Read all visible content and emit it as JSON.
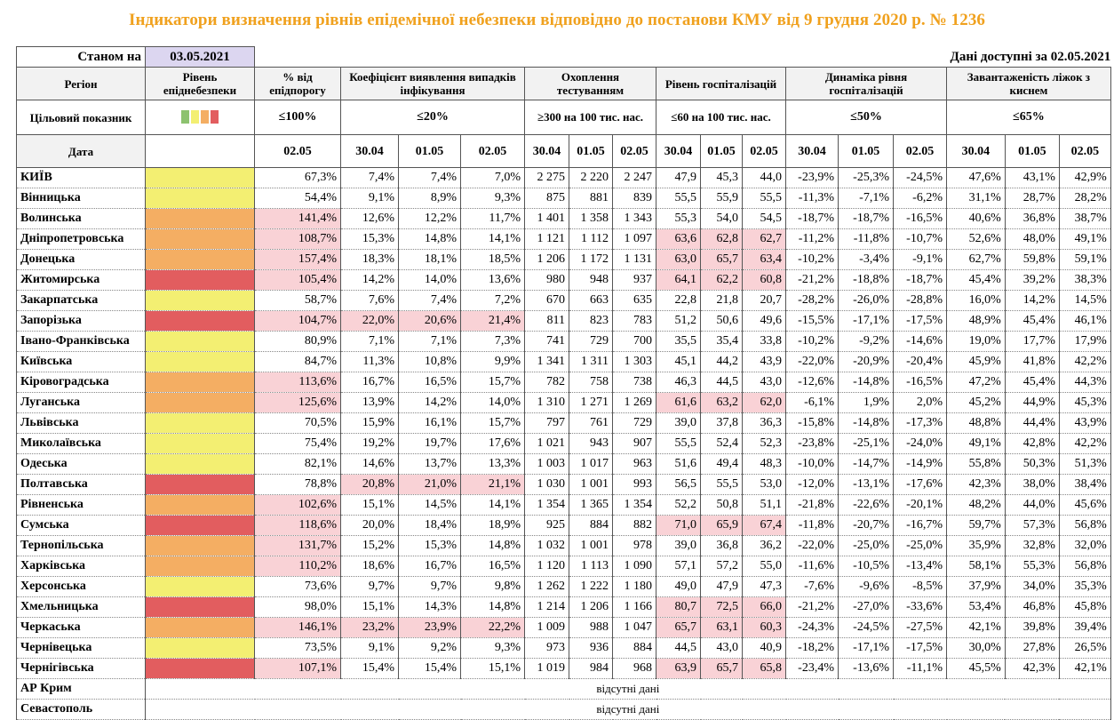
{
  "title": "Індикатори визначення рівнів епідемічної небезпеки відповідно до постанови КМУ від 9 грудня 2020 р. № 1236",
  "as_of_label": "Станом на",
  "as_of_date": "03.05.2021",
  "data_available_label": "Дані доступні за",
  "data_available_date": "02.05.2021",
  "headers": {
    "region": "Регіон",
    "level": "Рівень епіднебезпеки",
    "pct_threshold": "% від епідпорогу",
    "detection": "Коефіцієнт виявлення випадків інфікування",
    "testing": "Охоплення тестуванням",
    "hospitalization": "Рівень госпіталізацій",
    "hosp_dynamics": "Динаміка рівня госпіталізацій",
    "oxygen_beds": "Завантаженість ліжок з киснем"
  },
  "target": {
    "label": "Цільовий показник",
    "pct_threshold": "≤100%",
    "detection": "≤20%",
    "testing": "≥300 на 100 тис. нас.",
    "hospitalization": "≤60 на 100 тис. нас.",
    "hosp_dynamics": "≤50%",
    "oxygen_beds": "≤65%"
  },
  "legend_colors": [
    "#8dc26f",
    "#f3ef72",
    "#f4ae63",
    "#e25d5f"
  ],
  "date_row": {
    "label": "Дата",
    "pct": "02.05",
    "d1": "30.04",
    "d2": "01.05",
    "d3": "02.05"
  },
  "colors": {
    "yellow": "#f3ef72",
    "orange": "#f4ae63",
    "red": "#e25d5f",
    "highlight": "#f9d2d6",
    "title": "#f0a11e"
  },
  "rows": [
    {
      "region": "КИЇВ",
      "level": "yellow",
      "pct": "67,3%",
      "det": [
        "7,4%",
        "7,4%",
        "7,0%"
      ],
      "test": [
        "2 275",
        "2 220",
        "2 247"
      ],
      "hosp": [
        "47,9",
        "45,3",
        "44,0"
      ],
      "dyn": [
        "-23,9%",
        "-25,3%",
        "-24,5%"
      ],
      "oxy": [
        "47,6%",
        "43,1%",
        "42,9%"
      ],
      "hl": []
    },
    {
      "region": "Вінницька",
      "level": "yellow",
      "pct": "54,4%",
      "det": [
        "9,1%",
        "8,9%",
        "9,3%"
      ],
      "test": [
        "875",
        "881",
        "839"
      ],
      "hosp": [
        "55,5",
        "55,9",
        "55,5"
      ],
      "dyn": [
        "-11,3%",
        "-7,1%",
        "-6,2%"
      ],
      "oxy": [
        "31,1%",
        "28,7%",
        "28,2%"
      ],
      "hl": []
    },
    {
      "region": "Волинська",
      "level": "orange",
      "pct": "141,4%",
      "det": [
        "12,6%",
        "12,2%",
        "11,7%"
      ],
      "test": [
        "1 401",
        "1 358",
        "1 343"
      ],
      "hosp": [
        "55,3",
        "54,0",
        "54,5"
      ],
      "dyn": [
        "-18,7%",
        "-18,7%",
        "-16,5%"
      ],
      "oxy": [
        "40,6%",
        "36,8%",
        "38,7%"
      ],
      "hl": [
        "pct"
      ]
    },
    {
      "region": "Дніпропетровська",
      "level": "orange",
      "pct": "108,7%",
      "det": [
        "15,3%",
        "14,8%",
        "14,1%"
      ],
      "test": [
        "1 121",
        "1 112",
        "1 097"
      ],
      "hosp": [
        "63,6",
        "62,8",
        "62,7"
      ],
      "dyn": [
        "-11,2%",
        "-11,8%",
        "-10,7%"
      ],
      "oxy": [
        "52,6%",
        "48,0%",
        "49,1%"
      ],
      "hl": [
        "pct",
        "hosp"
      ]
    },
    {
      "region": "Донецька",
      "level": "orange",
      "pct": "157,4%",
      "det": [
        "18,3%",
        "18,1%",
        "18,5%"
      ],
      "test": [
        "1 206",
        "1 172",
        "1 131"
      ],
      "hosp": [
        "63,0",
        "65,7",
        "63,4"
      ],
      "dyn": [
        "-10,2%",
        "-3,4%",
        "-9,1%"
      ],
      "oxy": [
        "62,7%",
        "59,8%",
        "59,1%"
      ],
      "hl": [
        "pct",
        "hosp"
      ]
    },
    {
      "region": "Житомирська",
      "level": "red",
      "pct": "105,4%",
      "det": [
        "14,2%",
        "14,0%",
        "13,6%"
      ],
      "test": [
        "980",
        "948",
        "937"
      ],
      "hosp": [
        "64,1",
        "62,2",
        "60,8"
      ],
      "dyn": [
        "-21,2%",
        "-18,8%",
        "-18,7%"
      ],
      "oxy": [
        "45,4%",
        "39,2%",
        "38,3%"
      ],
      "hl": [
        "pct",
        "hosp"
      ]
    },
    {
      "region": "Закарпатська",
      "level": "yellow",
      "pct": "58,7%",
      "det": [
        "7,6%",
        "7,4%",
        "7,2%"
      ],
      "test": [
        "670",
        "663",
        "635"
      ],
      "hosp": [
        "22,8",
        "21,8",
        "20,7"
      ],
      "dyn": [
        "-28,2%",
        "-26,0%",
        "-28,8%"
      ],
      "oxy": [
        "16,0%",
        "14,2%",
        "14,5%"
      ],
      "hl": []
    },
    {
      "region": "Запорізька",
      "level": "red",
      "pct": "104,7%",
      "det": [
        "22,0%",
        "20,6%",
        "21,4%"
      ],
      "test": [
        "811",
        "823",
        "783"
      ],
      "hosp": [
        "51,2",
        "50,6",
        "49,6"
      ],
      "dyn": [
        "-15,5%",
        "-17,1%",
        "-17,5%"
      ],
      "oxy": [
        "48,9%",
        "45,4%",
        "46,1%"
      ],
      "hl": [
        "pct",
        "det"
      ]
    },
    {
      "region": "Івано-Франківська",
      "level": "yellow",
      "pct": "80,9%",
      "det": [
        "7,1%",
        "7,1%",
        "7,3%"
      ],
      "test": [
        "741",
        "729",
        "700"
      ],
      "hosp": [
        "35,5",
        "35,4",
        "33,8"
      ],
      "dyn": [
        "-10,2%",
        "-9,2%",
        "-14,6%"
      ],
      "oxy": [
        "19,0%",
        "17,7%",
        "17,9%"
      ],
      "hl": []
    },
    {
      "region": "Київська",
      "level": "yellow",
      "pct": "84,7%",
      "det": [
        "11,3%",
        "10,8%",
        "9,9%"
      ],
      "test": [
        "1 341",
        "1 311",
        "1 303"
      ],
      "hosp": [
        "45,1",
        "44,2",
        "43,9"
      ],
      "dyn": [
        "-22,0%",
        "-20,9%",
        "-20,4%"
      ],
      "oxy": [
        "45,9%",
        "41,8%",
        "42,2%"
      ],
      "hl": []
    },
    {
      "region": "Кіровоградська",
      "level": "orange",
      "pct": "113,6%",
      "det": [
        "16,7%",
        "16,5%",
        "15,7%"
      ],
      "test": [
        "782",
        "758",
        "738"
      ],
      "hosp": [
        "46,3",
        "44,5",
        "43,0"
      ],
      "dyn": [
        "-12,6%",
        "-14,8%",
        "-16,5%"
      ],
      "oxy": [
        "47,2%",
        "45,4%",
        "44,3%"
      ],
      "hl": [
        "pct"
      ]
    },
    {
      "region": "Луганська",
      "level": "orange",
      "pct": "125,6%",
      "det": [
        "13,9%",
        "14,2%",
        "14,0%"
      ],
      "test": [
        "1 310",
        "1 271",
        "1 269"
      ],
      "hosp": [
        "61,6",
        "63,2",
        "62,0"
      ],
      "dyn": [
        "-6,1%",
        "1,9%",
        "2,0%"
      ],
      "oxy": [
        "45,2%",
        "44,9%",
        "45,3%"
      ],
      "hl": [
        "pct",
        "hosp"
      ]
    },
    {
      "region": "Львівська",
      "level": "yellow",
      "pct": "70,5%",
      "det": [
        "15,9%",
        "16,1%",
        "15,7%"
      ],
      "test": [
        "797",
        "761",
        "729"
      ],
      "hosp": [
        "39,0",
        "37,8",
        "36,3"
      ],
      "dyn": [
        "-15,8%",
        "-14,8%",
        "-17,3%"
      ],
      "oxy": [
        "48,8%",
        "44,4%",
        "43,9%"
      ],
      "hl": []
    },
    {
      "region": "Миколаївська",
      "level": "yellow",
      "pct": "75,4%",
      "det": [
        "19,2%",
        "19,7%",
        "17,6%"
      ],
      "test": [
        "1 021",
        "943",
        "907"
      ],
      "hosp": [
        "55,5",
        "52,4",
        "52,3"
      ],
      "dyn": [
        "-23,8%",
        "-25,1%",
        "-24,0%"
      ],
      "oxy": [
        "49,1%",
        "42,8%",
        "42,2%"
      ],
      "hl": []
    },
    {
      "region": "Одеська",
      "level": "yellow",
      "pct": "82,1%",
      "det": [
        "14,6%",
        "13,7%",
        "13,3%"
      ],
      "test": [
        "1 003",
        "1 017",
        "963"
      ],
      "hosp": [
        "51,6",
        "49,4",
        "48,3"
      ],
      "dyn": [
        "-10,0%",
        "-14,7%",
        "-14,9%"
      ],
      "oxy": [
        "55,8%",
        "50,3%",
        "51,3%"
      ],
      "hl": []
    },
    {
      "region": "Полтавська",
      "level": "red",
      "pct": "78,8%",
      "det": [
        "20,8%",
        "21,0%",
        "21,1%"
      ],
      "test": [
        "1 030",
        "1 001",
        "993"
      ],
      "hosp": [
        "56,5",
        "55,5",
        "53,0"
      ],
      "dyn": [
        "-12,0%",
        "-13,1%",
        "-17,6%"
      ],
      "oxy": [
        "42,3%",
        "38,0%",
        "38,4%"
      ],
      "hl": [
        "det"
      ]
    },
    {
      "region": "Рівненська",
      "level": "orange",
      "pct": "102,6%",
      "det": [
        "15,1%",
        "14,5%",
        "14,1%"
      ],
      "test": [
        "1 354",
        "1 365",
        "1 354"
      ],
      "hosp": [
        "52,2",
        "50,8",
        "51,1"
      ],
      "dyn": [
        "-21,8%",
        "-22,6%",
        "-20,1%"
      ],
      "oxy": [
        "48,2%",
        "44,0%",
        "45,6%"
      ],
      "hl": [
        "pct"
      ]
    },
    {
      "region": "Сумська",
      "level": "red",
      "pct": "118,6%",
      "det": [
        "20,0%",
        "18,4%",
        "18,9%"
      ],
      "test": [
        "925",
        "884",
        "882"
      ],
      "hosp": [
        "71,0",
        "65,9",
        "67,4"
      ],
      "dyn": [
        "-11,8%",
        "-20,7%",
        "-16,7%"
      ],
      "oxy": [
        "59,7%",
        "57,3%",
        "56,8%"
      ],
      "hl": [
        "pct",
        "hosp"
      ]
    },
    {
      "region": "Тернопільська",
      "level": "orange",
      "pct": "131,7%",
      "det": [
        "15,2%",
        "15,3%",
        "14,8%"
      ],
      "test": [
        "1 032",
        "1 001",
        "978"
      ],
      "hosp": [
        "39,0",
        "36,8",
        "36,2"
      ],
      "dyn": [
        "-22,0%",
        "-25,0%",
        "-25,0%"
      ],
      "oxy": [
        "35,9%",
        "32,8%",
        "32,0%"
      ],
      "hl": [
        "pct"
      ]
    },
    {
      "region": "Харківська",
      "level": "orange",
      "pct": "110,2%",
      "det": [
        "18,6%",
        "16,7%",
        "16,5%"
      ],
      "test": [
        "1 120",
        "1 113",
        "1 090"
      ],
      "hosp": [
        "57,1",
        "57,2",
        "55,0"
      ],
      "dyn": [
        "-11,6%",
        "-10,5%",
        "-13,4%"
      ],
      "oxy": [
        "58,1%",
        "55,3%",
        "56,8%"
      ],
      "hl": [
        "pct"
      ]
    },
    {
      "region": "Херсонська",
      "level": "yellow",
      "pct": "73,6%",
      "det": [
        "9,7%",
        "9,7%",
        "9,8%"
      ],
      "test": [
        "1 262",
        "1 222",
        "1 180"
      ],
      "hosp": [
        "49,0",
        "47,9",
        "47,3"
      ],
      "dyn": [
        "-7,6%",
        "-9,6%",
        "-8,5%"
      ],
      "oxy": [
        "37,9%",
        "34,0%",
        "35,3%"
      ],
      "hl": []
    },
    {
      "region": "Хмельницька",
      "level": "red",
      "pct": "98,0%",
      "det": [
        "15,1%",
        "14,3%",
        "14,8%"
      ],
      "test": [
        "1 214",
        "1 206",
        "1 166"
      ],
      "hosp": [
        "80,7",
        "72,5",
        "66,0"
      ],
      "dyn": [
        "-21,2%",
        "-27,0%",
        "-33,6%"
      ],
      "oxy": [
        "53,4%",
        "46,8%",
        "45,8%"
      ],
      "hl": [
        "hosp"
      ]
    },
    {
      "region": "Черкаська",
      "level": "orange",
      "pct": "146,1%",
      "det": [
        "23,2%",
        "23,9%",
        "22,2%"
      ],
      "test": [
        "1 009",
        "988",
        "1 047"
      ],
      "hosp": [
        "65,7",
        "63,1",
        "60,3"
      ],
      "dyn": [
        "-24,3%",
        "-24,5%",
        "-27,5%"
      ],
      "oxy": [
        "42,1%",
        "39,8%",
        "39,4%"
      ],
      "hl": [
        "pct",
        "det",
        "hosp"
      ]
    },
    {
      "region": "Чернівецька",
      "level": "yellow",
      "pct": "73,5%",
      "det": [
        "9,1%",
        "9,2%",
        "9,3%"
      ],
      "test": [
        "973",
        "936",
        "884"
      ],
      "hosp": [
        "44,5",
        "43,0",
        "40,9"
      ],
      "dyn": [
        "-18,2%",
        "-17,1%",
        "-17,5%"
      ],
      "oxy": [
        "30,0%",
        "27,8%",
        "26,5%"
      ],
      "hl": []
    },
    {
      "region": "Чернігівська",
      "level": "red",
      "pct": "107,1%",
      "det": [
        "15,4%",
        "15,4%",
        "15,1%"
      ],
      "test": [
        "1 019",
        "984",
        "968"
      ],
      "hosp": [
        "63,9",
        "65,7",
        "65,8"
      ],
      "dyn": [
        "-23,4%",
        "-13,6%",
        "-11,1%"
      ],
      "oxy": [
        "45,5%",
        "42,3%",
        "42,1%"
      ],
      "hl": [
        "pct",
        "hosp"
      ]
    }
  ],
  "missing_rows": [
    {
      "region": "АР Крим",
      "note": "відсутні дані"
    },
    {
      "region": "Севастополь",
      "note": "відсутні дані"
    }
  ]
}
